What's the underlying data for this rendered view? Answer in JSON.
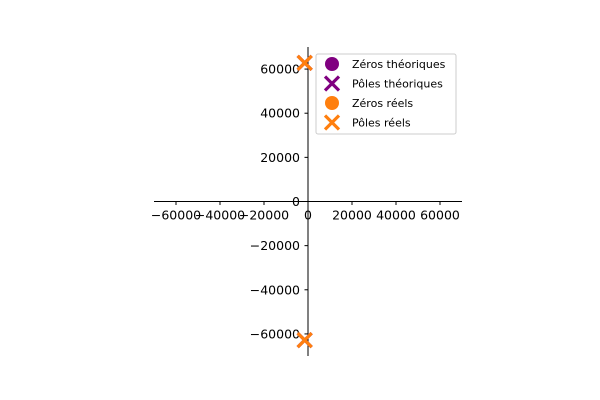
{
  "chart_data": {
    "type": "scatter",
    "title": "",
    "xlabel": "",
    "ylabel": "",
    "xlim": [
      -70000,
      70000
    ],
    "ylim": [
      -70000,
      70000
    ],
    "x_ticks": [
      -60000,
      -40000,
      -20000,
      0,
      20000,
      40000,
      60000
    ],
    "y_ticks": [
      -60000,
      -40000,
      -20000,
      0,
      20000,
      40000,
      60000
    ],
    "x_tick_labels": [
      "−60000",
      "−40000",
      "−20000",
      "0",
      "20000",
      "40000",
      "60000"
    ],
    "y_tick_labels": [
      "−60000",
      "−40000",
      "−20000",
      "0",
      "20000",
      "40000",
      "60000"
    ],
    "grid": false,
    "axes_through_origin": true,
    "legend_position": "upper-right",
    "series": [
      {
        "name": "Zéros théoriques",
        "marker": "circle",
        "color": "#800080",
        "points": []
      },
      {
        "name": "Pôles théoriques",
        "marker": "x",
        "color": "#800080",
        "points": [
          {
            "x": -1500,
            "y": 62800
          },
          {
            "x": -1500,
            "y": -62800
          }
        ]
      },
      {
        "name": "Zéros réels",
        "marker": "circle",
        "color": "#ff7f0e",
        "points": []
      },
      {
        "name": "Pôles réels",
        "marker": "x",
        "color": "#ff7f0e",
        "points": [
          {
            "x": -1500,
            "y": 62800
          },
          {
            "x": -1500,
            "y": -62800
          }
        ]
      }
    ]
  }
}
